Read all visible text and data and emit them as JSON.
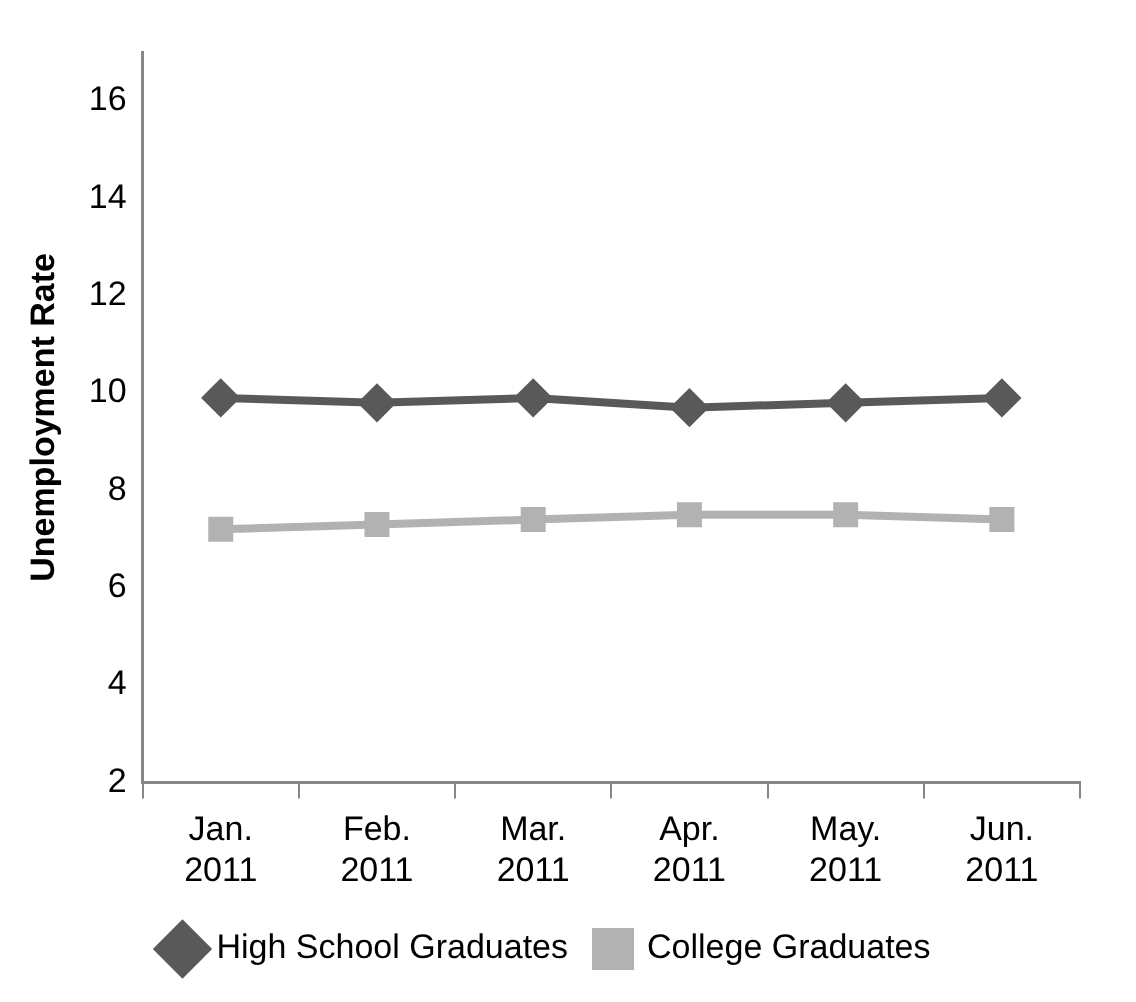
{
  "chart_data": {
    "type": "line",
    "ylabel": "Unemployment Rate",
    "categories": [
      "Jan. 2011",
      "Feb. 2011",
      "Mar. 2011",
      "Apr. 2011",
      "May. 2011",
      "Jun. 2011"
    ],
    "series": [
      {
        "name": "High School Graduates",
        "color": "#595959",
        "marker": "diamond",
        "values": [
          9.9,
          9.8,
          9.9,
          9.7,
          9.8,
          9.9
        ]
      },
      {
        "name": "College Graduates",
        "color": "#b2b2b2",
        "marker": "square",
        "values": [
          7.2,
          7.3,
          7.4,
          7.5,
          7.5,
          7.4
        ]
      }
    ],
    "ylim": [
      2,
      17
    ],
    "yticks": [
      2,
      4,
      6,
      8,
      10,
      12,
      14,
      16
    ],
    "grid": false,
    "legend": "bottom",
    "line_style": "solid"
  }
}
